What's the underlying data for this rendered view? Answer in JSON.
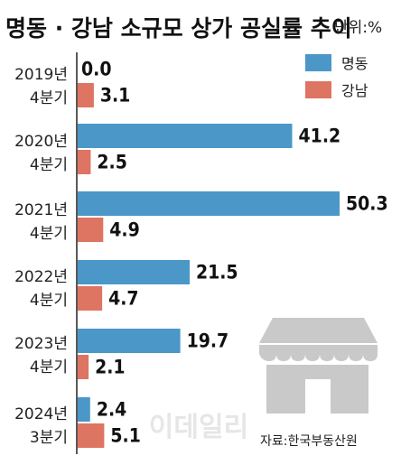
{
  "title": "명동 · 강남 소규모 상가 공실률 추이",
  "unit": "단위:%",
  "source": "자료:한국부동산원",
  "watermark": "이데일리",
  "colors": {
    "series1": "#4a97c8",
    "series2": "#de7462",
    "axis": "#222222",
    "storefront_icon": "#c9c9c9"
  },
  "icons": {
    "storefront": "storefront-icon"
  },
  "chart_data": {
    "type": "bar",
    "orientation": "horizontal",
    "title": "명동 · 강남 소규모 상가 공실률 추이",
    "unit": "단위:%",
    "categories": [
      [
        "2019년",
        "4분기"
      ],
      [
        "2020년",
        "4분기"
      ],
      [
        "2021년",
        "4분기"
      ],
      [
        "2022년",
        "4분기"
      ],
      [
        "2023년",
        "4분기"
      ],
      [
        "2024년",
        "3분기"
      ]
    ],
    "series": [
      {
        "name": "명동",
        "values": [
          0.0,
          41.2,
          50.3,
          21.5,
          19.7,
          2.4
        ],
        "labels": [
          "0.0",
          "41.2",
          "50.3",
          "21.5",
          "19.7",
          "2.4"
        ]
      },
      {
        "name": "강남",
        "values": [
          3.1,
          2.5,
          4.9,
          4.7,
          2.1,
          5.1
        ],
        "labels": [
          "3.1",
          "2.5",
          "4.9",
          "4.7",
          "2.1",
          "5.1"
        ]
      }
    ],
    "xlim": [
      0,
      50.3
    ],
    "legend": "top-right",
    "grid": false
  }
}
